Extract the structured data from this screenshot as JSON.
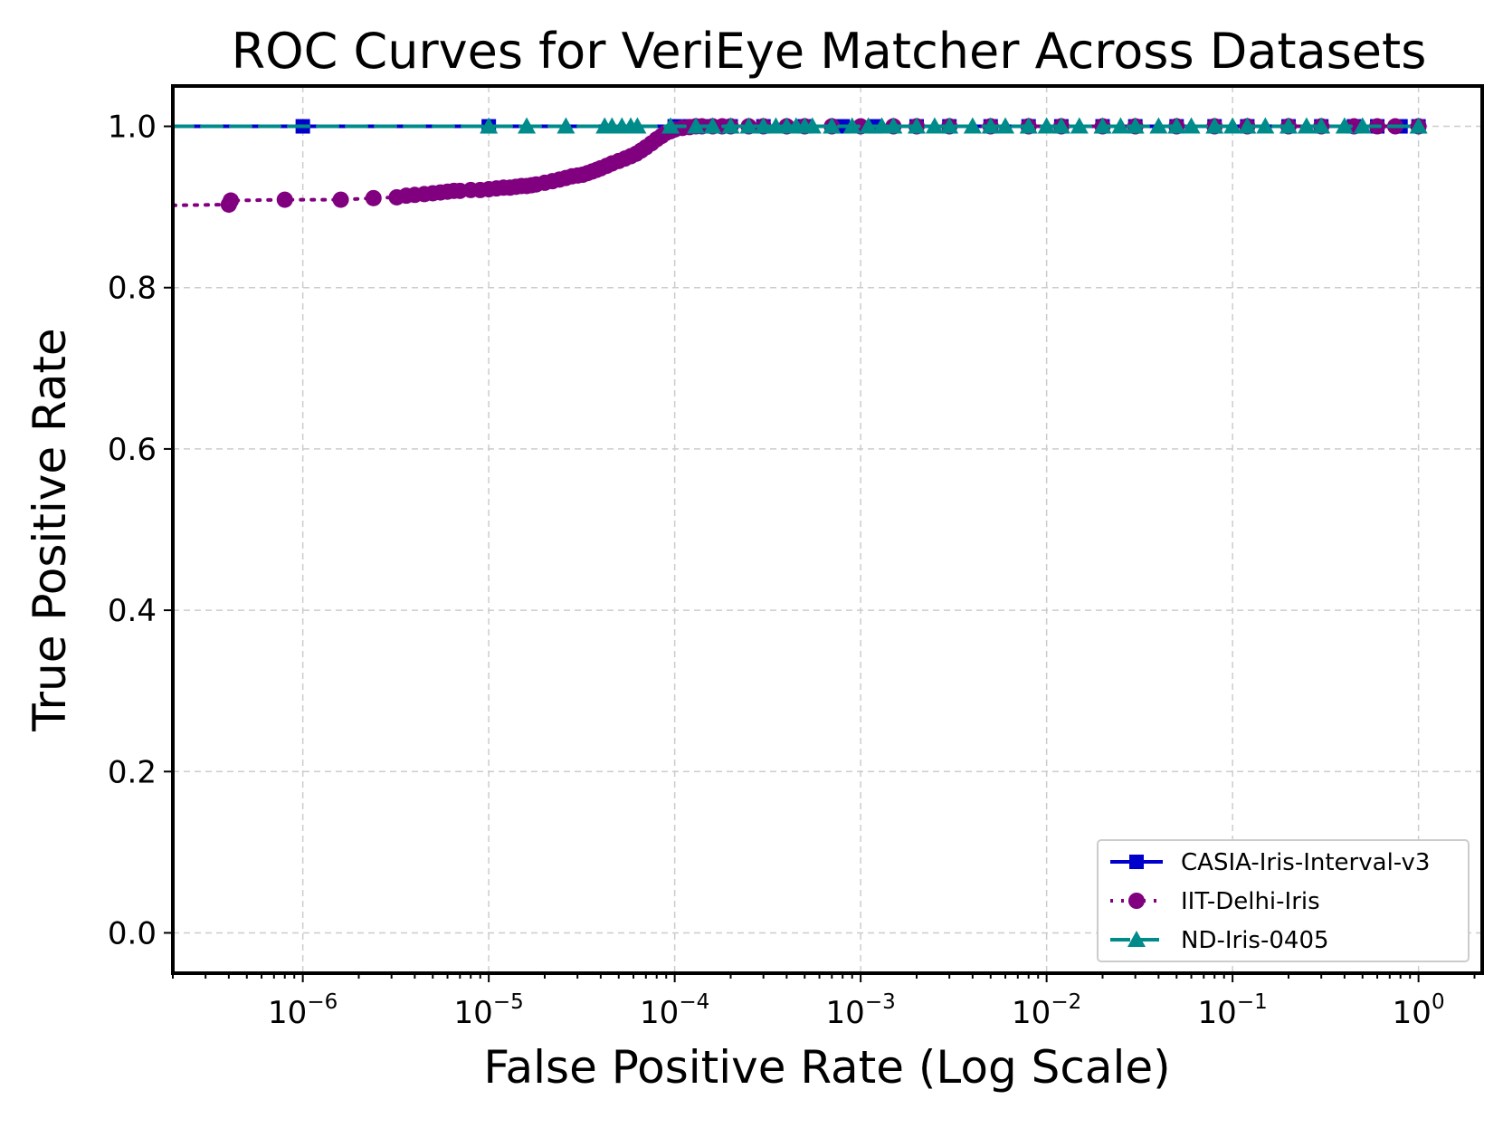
{
  "chart_data": {
    "type": "line",
    "title": "ROC Curves for VeriEye Matcher Across Datasets",
    "xlabel": "False Positive Rate (Log Scale)",
    "ylabel": "True Positive Rate",
    "xscale": "log",
    "xlim": [
      2e-07,
      2.2
    ],
    "ylim": [
      -0.05,
      1.05
    ],
    "x_ticks": [
      {
        "value": 1e-06,
        "base": "10",
        "exp": "−6"
      },
      {
        "value": 1e-05,
        "base": "10",
        "exp": "−5"
      },
      {
        "value": 0.0001,
        "base": "10",
        "exp": "−4"
      },
      {
        "value": 0.001,
        "base": "10",
        "exp": "−3"
      },
      {
        "value": 0.01,
        "base": "10",
        "exp": "−2"
      },
      {
        "value": 0.1,
        "base": "10",
        "exp": "−1"
      },
      {
        "value": 1,
        "base": "10",
        "exp": "0"
      }
    ],
    "y_ticks": [
      {
        "value": 0.0,
        "label": "0.0"
      },
      {
        "value": 0.2,
        "label": "0.2"
      },
      {
        "value": 0.4,
        "label": "0.4"
      },
      {
        "value": 0.6,
        "label": "0.6"
      },
      {
        "value": 0.8,
        "label": "0.8"
      },
      {
        "value": 1.0,
        "label": "1.0"
      }
    ],
    "grid": true,
    "legend_position": "bottom-right",
    "series": [
      {
        "name": "CASIA-Iris-Interval-v3",
        "color": "#0000cc",
        "line_style": "solid",
        "marker": "square",
        "x": [
          2e-07,
          1e-06,
          1e-05,
          0.0001,
          0.00012,
          0.00015,
          0.0002,
          0.0003,
          0.0005,
          0.0008,
          0.0012,
          0.002,
          0.003,
          0.005,
          0.008,
          0.012,
          0.02,
          0.03,
          0.05,
          0.08,
          0.12,
          0.2,
          0.3,
          0.45,
          0.6,
          0.8,
          1.0
        ],
        "y": [
          1.0,
          1.0,
          1.0,
          1.0,
          1.0,
          1.0,
          1.0,
          1.0,
          1.0,
          1.0,
          1.0,
          1.0,
          1.0,
          1.0,
          1.0,
          1.0,
          1.0,
          1.0,
          1.0,
          1.0,
          1.0,
          1.0,
          1.0,
          1.0,
          1.0,
          1.0,
          1.0
        ]
      },
      {
        "name": "IIT-Delhi-Iris",
        "color": "#800080",
        "line_style": "dotted",
        "marker": "circle",
        "x": [
          2e-07,
          4e-07,
          4.1e-07,
          8e-07,
          1.6e-06,
          2.4e-06,
          3.2e-06,
          3.6e-06,
          4e-06,
          4.5e-06,
          5e-06,
          5.5e-06,
          6e-06,
          6.5e-06,
          7e-06,
          8e-06,
          9e-06,
          1e-05,
          1.1e-05,
          1.2e-05,
          1.3e-05,
          1.4e-05,
          1.5e-05,
          1.6e-05,
          1.7e-05,
          1.8e-05,
          2e-05,
          2.2e-05,
          2.4e-05,
          2.6e-05,
          2.8e-05,
          3e-05,
          3.2e-05,
          3.4e-05,
          3.6e-05,
          3.8e-05,
          4e-05,
          4.3e-05,
          4.6e-05,
          5e-05,
          5.4e-05,
          5.8e-05,
          6.2e-05,
          6.6e-05,
          7e-05,
          7.5e-05,
          8e-05,
          8.5e-05,
          9e-05,
          9.5e-05,
          0.0001,
          0.00011,
          0.00012,
          0.00013,
          0.00014,
          0.00016,
          0.00018,
          0.0002,
          0.00025,
          0.0003,
          0.0004,
          0.0005,
          0.0007,
          0.001,
          0.0015,
          0.002,
          0.003,
          0.005,
          0.008,
          0.012,
          0.02,
          0.03,
          0.05,
          0.08,
          0.12,
          0.2,
          0.3,
          0.45,
          0.6,
          0.75,
          1.0
        ],
        "y": [
          0.902,
          0.903,
          0.908,
          0.909,
          0.909,
          0.911,
          0.912,
          0.914,
          0.915,
          0.916,
          0.917,
          0.918,
          0.919,
          0.92,
          0.92,
          0.921,
          0.921,
          0.922,
          0.923,
          0.924,
          0.924,
          0.925,
          0.926,
          0.926,
          0.927,
          0.928,
          0.93,
          0.932,
          0.934,
          0.936,
          0.938,
          0.939,
          0.94,
          0.942,
          0.944,
          0.946,
          0.948,
          0.951,
          0.954,
          0.957,
          0.96,
          0.963,
          0.966,
          0.97,
          0.974,
          0.979,
          0.984,
          0.988,
          0.992,
          0.994,
          0.996,
          0.998,
          0.999,
          1.0,
          1.0,
          1.0,
          1.0,
          1.0,
          1.0,
          1.0,
          1.0,
          1.0,
          1.0,
          1.0,
          1.0,
          1.0,
          1.0,
          1.0,
          1.0,
          1.0,
          1.0,
          1.0,
          1.0,
          1.0,
          1.0,
          1.0,
          1.0,
          1.0,
          1.0,
          1.0,
          1.0
        ]
      },
      {
        "name": "ND-Iris-0405",
        "color": "#008b8b",
        "line_style": "dashed",
        "marker": "triangle",
        "x": [
          2e-07,
          1e-05,
          1.6e-05,
          2.6e-05,
          4.2e-05,
          4.6e-05,
          5.2e-05,
          5.8e-05,
          6.3e-05,
          9.5e-05,
          0.00013,
          0.00016,
          0.0002,
          0.00025,
          0.0003,
          0.00035,
          0.0004,
          0.00045,
          0.0005,
          0.00055,
          0.0007,
          0.0009,
          0.0011,
          0.0013,
          0.0015,
          0.002,
          0.0025,
          0.003,
          0.004,
          0.005,
          0.006,
          0.008,
          0.01,
          0.012,
          0.015,
          0.02,
          0.025,
          0.03,
          0.04,
          0.05,
          0.06,
          0.08,
          0.1,
          0.12,
          0.15,
          0.2,
          0.25,
          0.3,
          0.4,
          0.5,
          1.0
        ],
        "y": [
          1.0,
          1.0,
          1.0,
          1.0,
          1.0,
          1.0,
          1.0,
          1.0,
          1.0,
          1.0,
          1.0,
          1.0,
          1.0,
          1.0,
          1.0,
          1.0,
          1.0,
          1.0,
          1.0,
          1.0,
          1.0,
          1.0,
          1.0,
          1.0,
          1.0,
          1.0,
          1.0,
          1.0,
          1.0,
          1.0,
          1.0,
          1.0,
          1.0,
          1.0,
          1.0,
          1.0,
          1.0,
          1.0,
          1.0,
          1.0,
          1.0,
          1.0,
          1.0,
          1.0,
          1.0,
          1.0,
          1.0,
          1.0,
          1.0,
          1.0,
          1.0
        ]
      }
    ]
  }
}
